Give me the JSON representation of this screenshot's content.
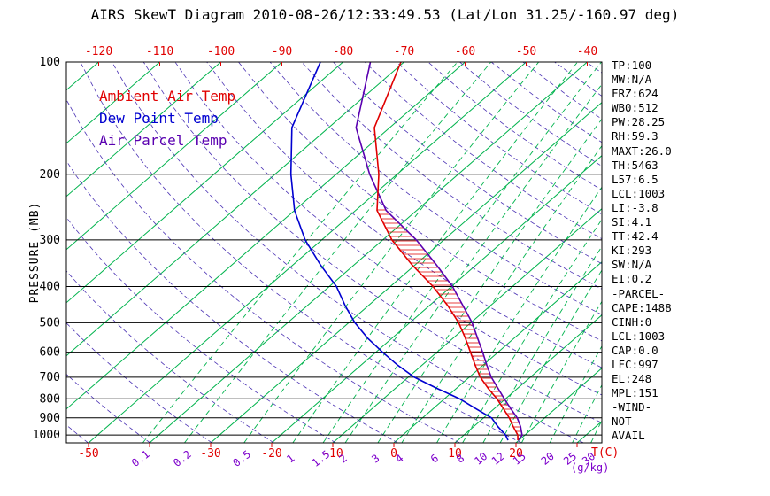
{
  "title": "AIRS SkewT Diagram 2010-08-26/12:33:49.53 (Lat/Lon 31.25/-160.97 deg)",
  "legend": [
    {
      "label": "Ambient Air Temp",
      "color": "#e00000"
    },
    {
      "label": "Dew Point Temp",
      "color": "#0000d0"
    },
    {
      "label": "Air Parcel Temp",
      "color": "#5a00b0"
    }
  ],
  "axes": {
    "pressure_label": "PRESSURE (MB)",
    "pressure_ticks": [
      100,
      200,
      300,
      400,
      500,
      600,
      700,
      800,
      900,
      1000
    ],
    "top_temp_ticks": [
      -120,
      -110,
      -100,
      -90,
      -80,
      -70,
      -60,
      -50,
      -40
    ],
    "bottom_temp_ticks": [
      -50,
      -30,
      -20,
      -10,
      0,
      10,
      20
    ],
    "temp_unit_label": "T(C)",
    "mixing_ratio_values": [
      0.1,
      0.2,
      0.5,
      1,
      1.5,
      2,
      3,
      4,
      6,
      8,
      10,
      12,
      15,
      20,
      25,
      30
    ],
    "mixing_ratio_unit_label": "(g/kg)"
  },
  "stats_panel": [
    "TP:100",
    "MW:N/A",
    "FRZ:624",
    "WB0:512",
    "PW:28.25",
    "RH:59.3",
    "MAXT:26.0",
    "TH:5463",
    "L57:6.5",
    "LCL:1003",
    "LI:-3.8",
    "SI:4.1",
    "TT:42.4",
    "KI:293",
    "SW:N/A",
    "EI:0.2",
    "-PARCEL-",
    "CAPE:1488",
    "CINH:0",
    "LCL:1003",
    "CAP:0.0",
    "LFC:997",
    "EL:248",
    "MPL:151",
    "-WIND-",
    "NOT",
    "AVAIL"
  ],
  "colors": {
    "ambient": "#e00000",
    "dewpoint": "#0000d0",
    "parcel": "#5a00b0",
    "isotherm_green": "#00b34d",
    "adiabat_purple": "#4b32b4",
    "mixing_label": "#7d00cc",
    "axis_black": "#000000"
  },
  "chart_data": {
    "type": "line",
    "variant": "skew-t-log-p",
    "title": "AIRS SkewT Diagram",
    "ylabel": "PRESSURE (MB)",
    "xlabel": "T(C)",
    "y_scale": "log",
    "ylim": [
      1050,
      100
    ],
    "top_axis_ticks": [
      -120,
      -110,
      -100,
      -90,
      -80,
      -70,
      -60,
      -50,
      -40
    ],
    "bottom_axis_ticks": [
      -50,
      -30,
      -20,
      -10,
      0,
      10,
      20
    ],
    "mixing_ratio_lines_g_per_kg": [
      0.1,
      0.2,
      0.5,
      1,
      1.5,
      2,
      3,
      4,
      6,
      8,
      10,
      12,
      15,
      20,
      25,
      30
    ],
    "series": [
      {
        "name": "Air Parcel Temp",
        "color": "#5a00b0",
        "points_format": "[pressure_mb, temp_C]",
        "points": [
          [
            1033,
            19.8
          ],
          [
            1003,
            19.6
          ],
          [
            950,
            17.7
          ],
          [
            900,
            15.5
          ],
          [
            850,
            12.7
          ],
          [
            800,
            9.8
          ],
          [
            750,
            6.8
          ],
          [
            700,
            3.6
          ],
          [
            650,
            0.6
          ],
          [
            600,
            -2.5
          ],
          [
            550,
            -6.0
          ],
          [
            500,
            -9.8
          ],
          [
            450,
            -14.5
          ],
          [
            400,
            -19.8
          ],
          [
            350,
            -26.5
          ],
          [
            300,
            -34.5
          ],
          [
            250,
            -45.0
          ],
          [
            200,
            -54.5
          ],
          [
            150,
            -65.5
          ],
          [
            100,
            -75.5
          ]
        ]
      },
      {
        "name": "Ambient Air Temp",
        "color": "#e00000",
        "points_format": "[pressure_mb, temp_C]",
        "points": [
          [
            1033,
            19.8
          ],
          [
            1000,
            18.8
          ],
          [
            950,
            16.5
          ],
          [
            900,
            14.2
          ],
          [
            850,
            11.5
          ],
          [
            800,
            8.6
          ],
          [
            750,
            5.2
          ],
          [
            700,
            1.8
          ],
          [
            650,
            -1.3
          ],
          [
            600,
            -4.5
          ],
          [
            550,
            -8.0
          ],
          [
            500,
            -12.0
          ],
          [
            450,
            -17.0
          ],
          [
            400,
            -23.0
          ],
          [
            350,
            -30.5
          ],
          [
            300,
            -38.5
          ],
          [
            250,
            -46.5
          ],
          [
            200,
            -53.0
          ],
          [
            150,
            -62.5
          ],
          [
            100,
            -70.5
          ]
        ]
      },
      {
        "name": "Dew Point Temp",
        "color": "#0000d0",
        "points_format": "[pressure_mb, temp_C]",
        "points": [
          [
            1033,
            18.2
          ],
          [
            1000,
            16.8
          ],
          [
            950,
            14.0
          ],
          [
            900,
            11.3
          ],
          [
            850,
            7.0
          ],
          [
            800,
            2.5
          ],
          [
            750,
            -3.2
          ],
          [
            700,
            -9.0
          ],
          [
            650,
            -14.0
          ],
          [
            600,
            -18.9
          ],
          [
            550,
            -24.0
          ],
          [
            500,
            -29.0
          ],
          [
            450,
            -33.8
          ],
          [
            400,
            -38.8
          ],
          [
            350,
            -45.5
          ],
          [
            300,
            -52.7
          ],
          [
            250,
            -60.0
          ],
          [
            200,
            -67.4
          ],
          [
            150,
            -76.0
          ],
          [
            100,
            -83.7
          ]
        ]
      }
    ],
    "cape_fill": {
      "between": [
        "Air Parcel Temp",
        "Ambient Air Temp"
      ],
      "pressure_range": [
        997,
        248
      ],
      "style": "horizontal-hatch",
      "color": "#e00000"
    }
  }
}
